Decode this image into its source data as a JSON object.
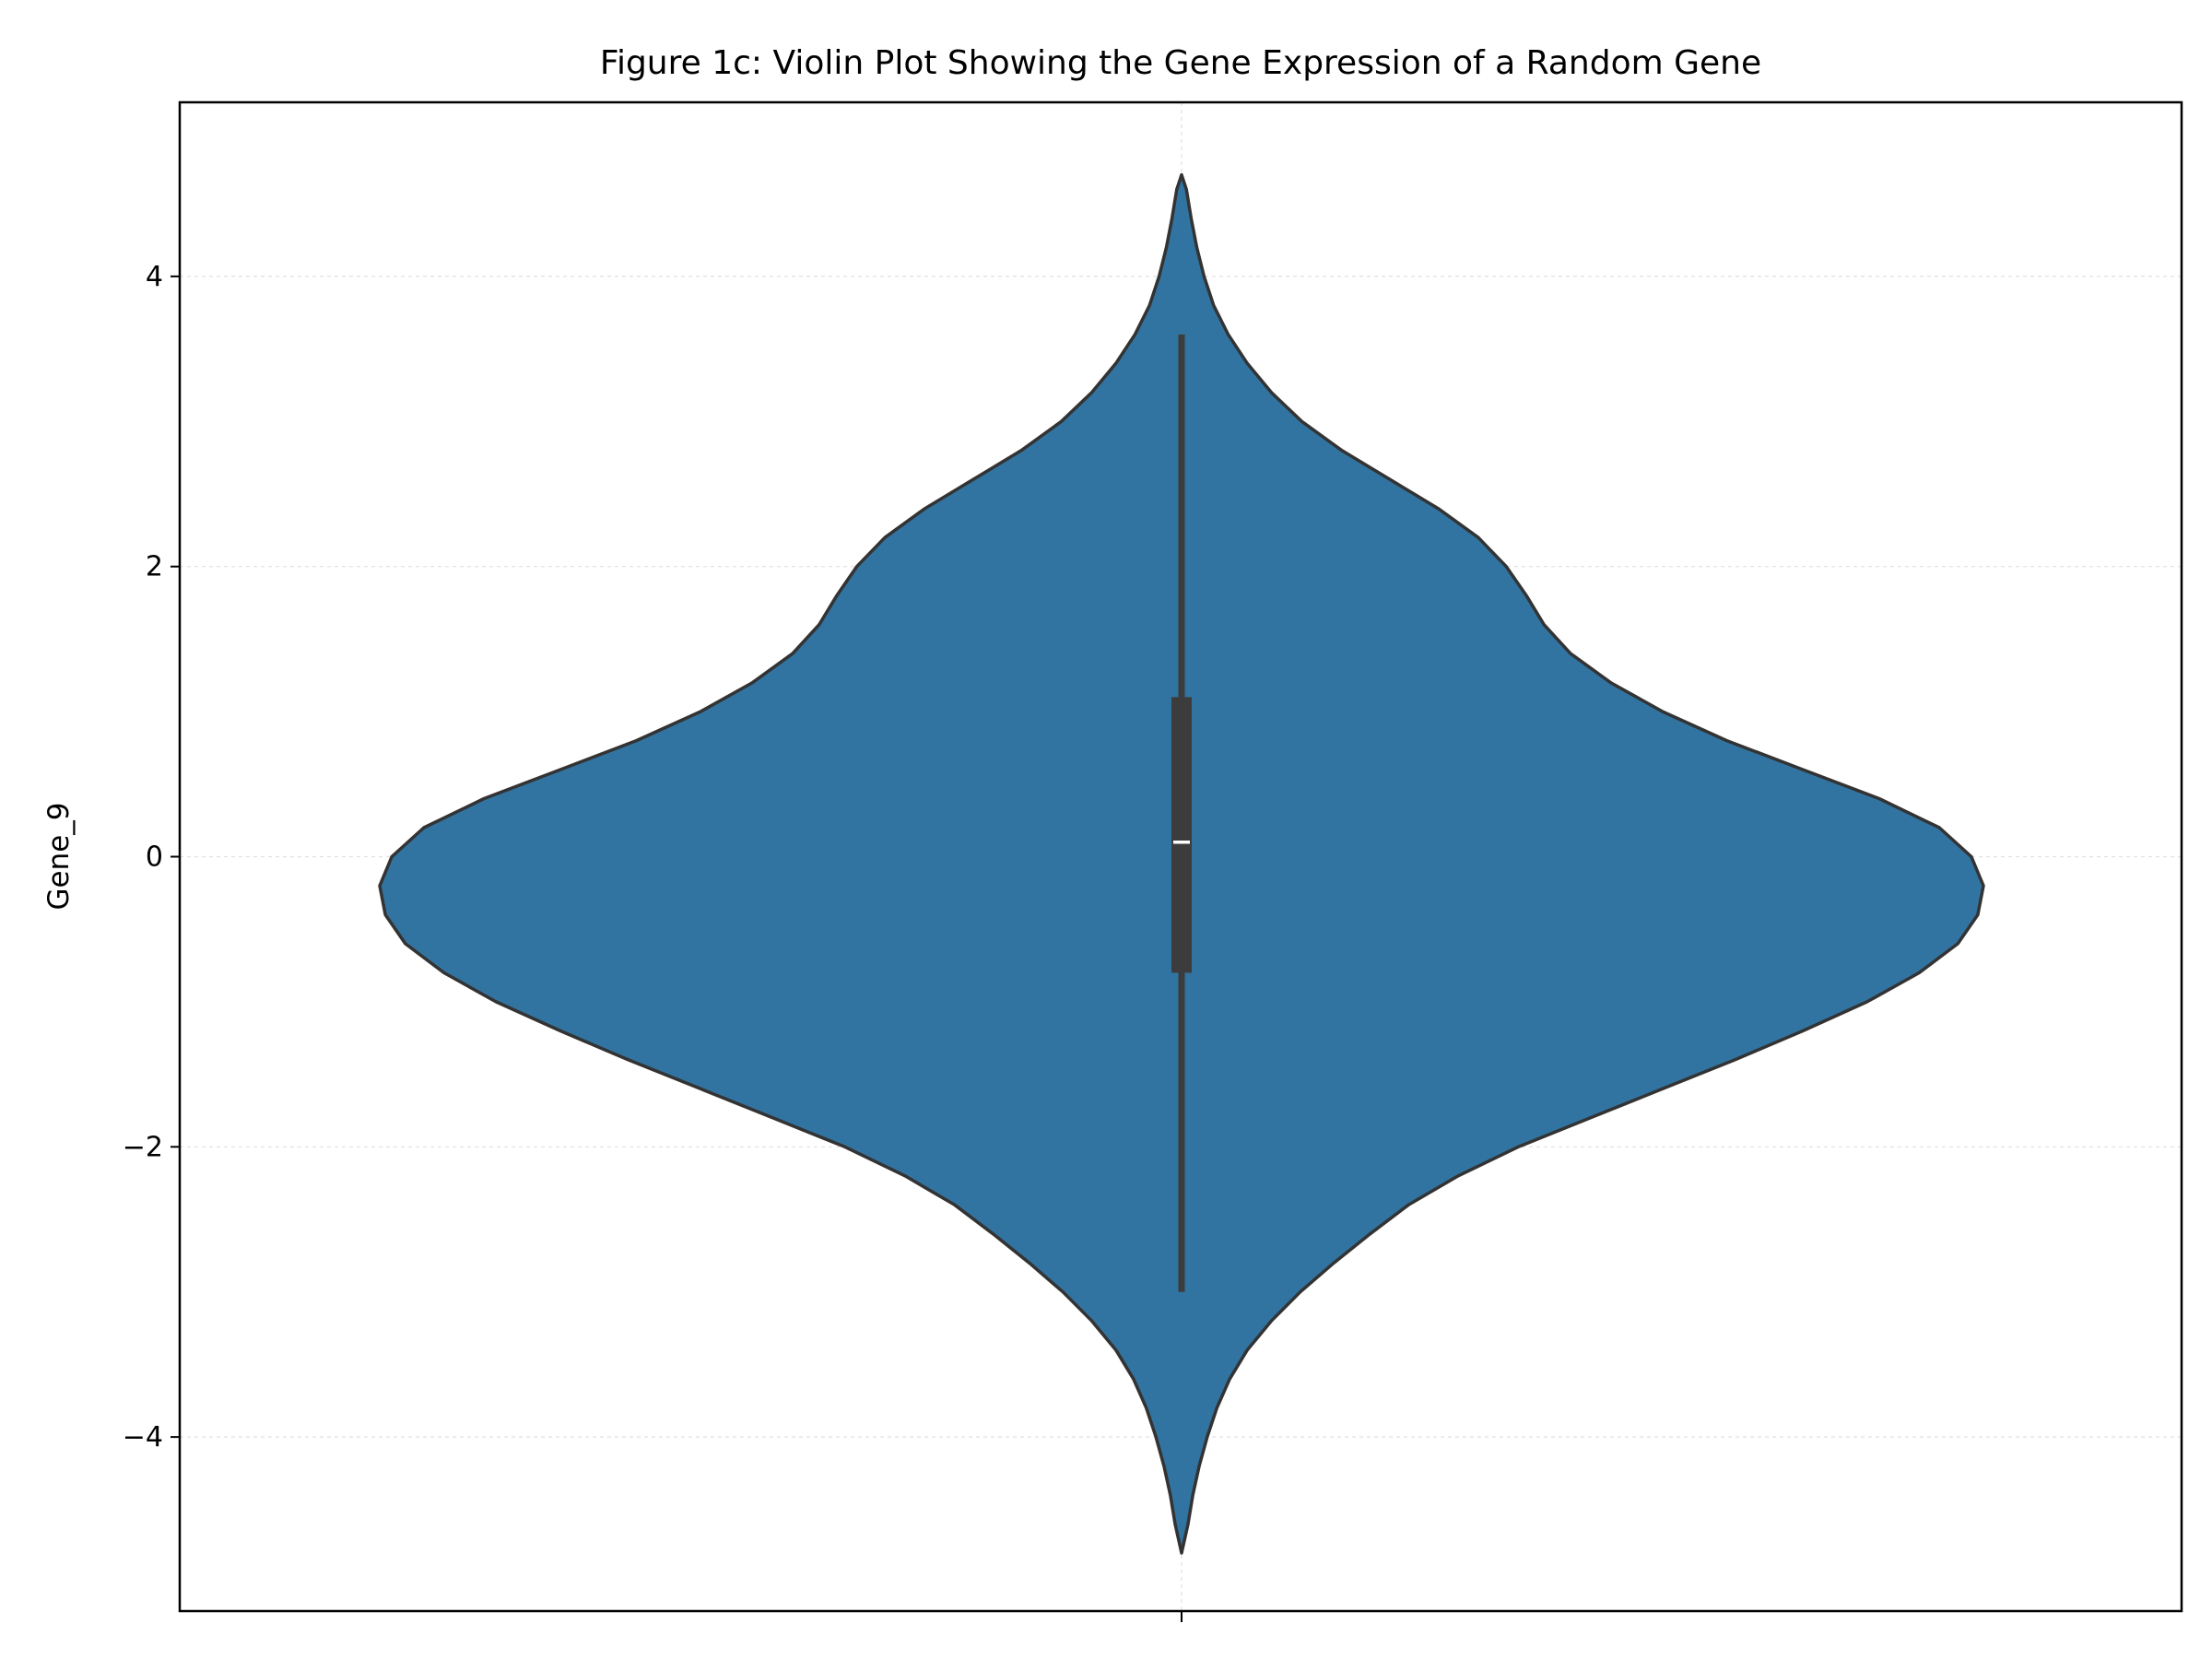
{
  "chart_data": {
    "type": "violin",
    "title": "Figure 1c: Violin Plot Showing the Gene Expression of a Random Gene",
    "xlabel": "",
    "ylabel": "Gene_9",
    "ylim": [
      -5.2,
      5.2
    ],
    "yticks": [
      -4,
      -2,
      0,
      2,
      4
    ],
    "ytick_labels": [
      "−4",
      "−2",
      "0",
      "2",
      "4"
    ],
    "grid": true,
    "colors": {
      "fill": "#3274a1",
      "outline": "#333333",
      "box": "#3c3c3c",
      "median": "#ffffff",
      "grid": "#e0e0e0"
    },
    "series": [
      {
        "min": -4.8,
        "max": 4.7,
        "q1": -0.8,
        "median": 0.1,
        "q3": 1.1,
        "whisker_low": -3.0,
        "whisker_high": 3.6,
        "density_profile": [
          [
            -4.8,
            0.0
          ],
          [
            -4.6,
            0.008
          ],
          [
            -4.4,
            0.014
          ],
          [
            -4.2,
            0.022
          ],
          [
            -4.0,
            0.032
          ],
          [
            -3.8,
            0.044
          ],
          [
            -3.6,
            0.06
          ],
          [
            -3.4,
            0.082
          ],
          [
            -3.2,
            0.112
          ],
          [
            -3.0,
            0.148
          ],
          [
            -2.8,
            0.19
          ],
          [
            -2.6,
            0.235
          ],
          [
            -2.4,
            0.283
          ],
          [
            -2.2,
            0.345
          ],
          [
            -2.0,
            0.42
          ],
          [
            -1.8,
            0.51
          ],
          [
            -1.6,
            0.6
          ],
          [
            -1.4,
            0.69
          ],
          [
            -1.2,
            0.775
          ],
          [
            -1.0,
            0.855
          ],
          [
            -0.8,
            0.92
          ],
          [
            -0.6,
            0.968
          ],
          [
            -0.4,
            0.993
          ],
          [
            -0.2,
            1.0
          ],
          [
            0.0,
            0.985
          ],
          [
            0.2,
            0.945
          ],
          [
            0.4,
            0.87
          ],
          [
            0.6,
            0.775
          ],
          [
            0.8,
            0.68
          ],
          [
            1.0,
            0.6
          ],
          [
            1.2,
            0.535
          ],
          [
            1.4,
            0.485
          ],
          [
            1.6,
            0.452
          ],
          [
            1.8,
            0.43
          ],
          [
            2.0,
            0.405
          ],
          [
            2.2,
            0.37
          ],
          [
            2.4,
            0.32
          ],
          [
            2.6,
            0.26
          ],
          [
            2.8,
            0.2
          ],
          [
            3.0,
            0.15
          ],
          [
            3.2,
            0.112
          ],
          [
            3.4,
            0.082
          ],
          [
            3.6,
            0.058
          ],
          [
            3.8,
            0.04
          ],
          [
            4.0,
            0.028
          ],
          [
            4.2,
            0.019
          ],
          [
            4.4,
            0.012
          ],
          [
            4.6,
            0.006
          ],
          [
            4.7,
            0.0
          ]
        ]
      }
    ]
  }
}
